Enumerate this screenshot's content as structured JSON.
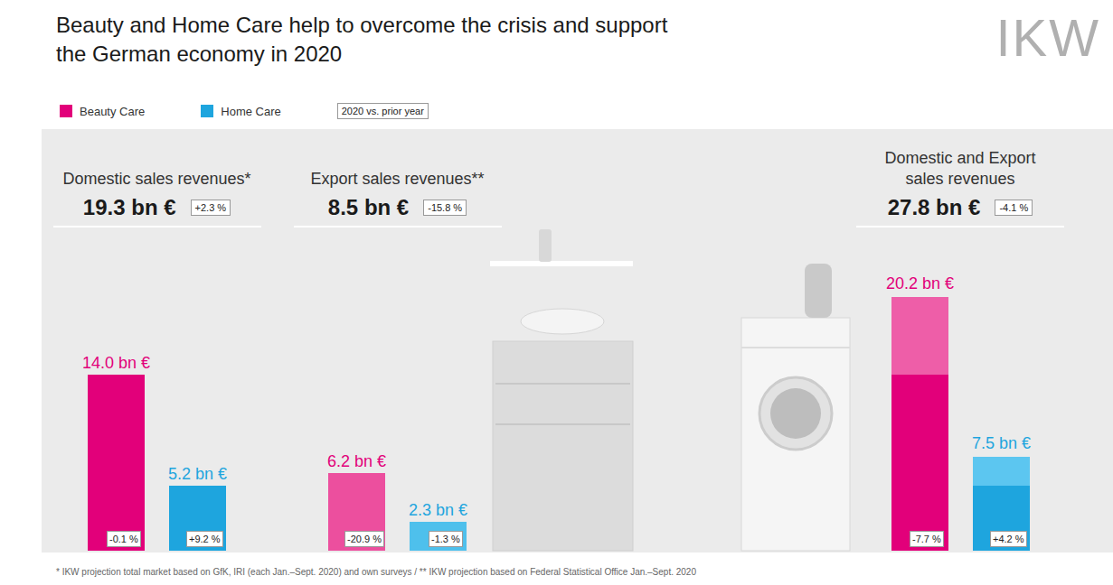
{
  "title": "Beauty and Home Care help to overcome the crisis and support the German economy in 2020",
  "logo": "IKW",
  "legend": "top-left",
  "legend_entries": [
    {
      "name": "Beauty Care",
      "color": "#e2007a"
    },
    {
      "name": "Home Care",
      "color": "#1ea5de"
    }
  ],
  "change_note": "2020 vs. prior year",
  "footnote": "* IKW projection total market based on GfK, IRI (each Jan.–Sept. 2020) and own surveys / ** IKW projection based on Federal Statistical Office Jan.–Sept. 2020",
  "chart_data": [
    {
      "type": "bar",
      "title": "Domestic sales revenues*",
      "headline": "19.3 bn €",
      "headline_change": "+2.3 %",
      "categories": [
        null,
        null
      ],
      "series": [
        {
          "colors": [
            "#e2007a",
            "#1ea5de"
          ],
          "values": [
            14.0,
            5.2
          ],
          "value_labels": [
            "14.0 bn €",
            "5.2 bn €"
          ]
        }
      ],
      "change_labels": [
        "-0.1 %",
        "+9.2 %"
      ],
      "ylim": [
        0,
        22
      ],
      "tick_labels": false,
      "grid": false,
      "data_labels": true,
      "stacked": false
    },
    {
      "type": "bar",
      "title": "Export sales revenues**",
      "headline": "8.5 bn €",
      "headline_change": "-15.8 %",
      "categories": [
        null,
        null
      ],
      "series": [
        {
          "colors": [
            "#ec4f9e",
            "#4ec0ec"
          ],
          "values": [
            6.2,
            2.3
          ],
          "value_labels": [
            "6.2 bn €",
            "2.3 bn €"
          ]
        }
      ],
      "change_labels": [
        "-20.9 %",
        "-1.3 %"
      ],
      "ylim": [
        0,
        22
      ],
      "tick_labels": false,
      "grid": false,
      "data_labels": true,
      "stacked": false
    },
    {
      "type": "bar",
      "title": "Domestic and Export sales revenues",
      "headline": "27.8 bn €",
      "headline_change": "-4.1 %",
      "categories": [
        null,
        null
      ],
      "series": [
        {
          "colors": [
            "#e2007a",
            "#1ea5de"
          ],
          "values": [
            14.0,
            5.2
          ]
        },
        {
          "colors": [
            "#ee5ea8",
            "#5cc6f0"
          ],
          "values": [
            6.2,
            2.3
          ]
        }
      ],
      "totals": [
        20.2,
        7.5
      ],
      "total_labels": [
        "20.2 bn €",
        "7.5 bn €"
      ],
      "change_labels": [
        "-7.7 %",
        "+4.2 %"
      ],
      "ylim": [
        0,
        22
      ],
      "tick_labels": false,
      "grid": false,
      "data_labels": false,
      "stacked": true
    }
  ]
}
